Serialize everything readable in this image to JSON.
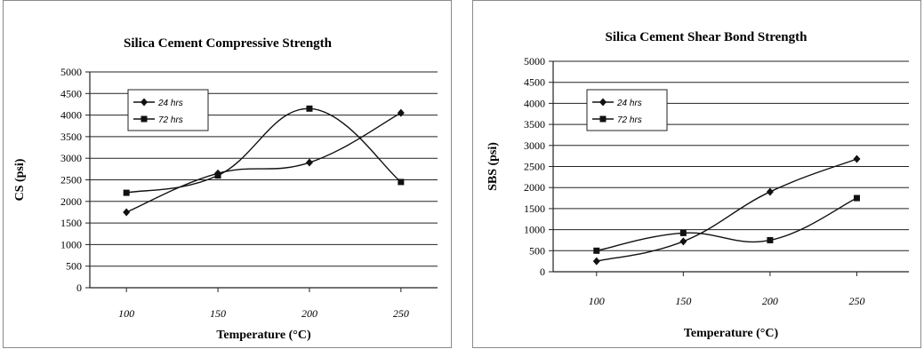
{
  "chart_data": [
    {
      "type": "line",
      "title": "Silica Cement Compressive Strength",
      "xlabel": "Temperature (°C)",
      "ylabel": "CS (psi)",
      "x": [
        100,
        150,
        200,
        250
      ],
      "xticks": [
        "100",
        "150",
        "200",
        "250"
      ],
      "xlim": [
        80,
        270
      ],
      "ylim": [
        0,
        5000
      ],
      "yticks": [
        "0",
        "500",
        "1000",
        "1500",
        "2000",
        "2500",
        "3000",
        "3500",
        "4000",
        "4500",
        "5000"
      ],
      "grid": true,
      "legend": "top-left",
      "series": [
        {
          "name": "24 hrs",
          "marker": "diamond",
          "values": [
            1750,
            2650,
            2900,
            4050
          ]
        },
        {
          "name": "72 hrs",
          "marker": "square",
          "values": [
            2200,
            2600,
            4150,
            2450
          ]
        }
      ]
    },
    {
      "type": "line",
      "title": "Silica Cement Shear Bond Strength",
      "xlabel": "Temperature (°C)",
      "ylabel": "SBS (psi)",
      "x": [
        100,
        150,
        200,
        250
      ],
      "xticks": [
        "100",
        "150",
        "200",
        "250"
      ],
      "xlim": [
        75,
        280
      ],
      "ylim": [
        0,
        5000
      ],
      "yticks": [
        "0",
        "500",
        "1000",
        "1500",
        "2000",
        "2500",
        "3000",
        "3500",
        "4000",
        "4500",
        "5000"
      ],
      "grid": true,
      "legend": "top-left",
      "series": [
        {
          "name": "24 hrs",
          "marker": "diamond",
          "values": [
            250,
            720,
            1900,
            2680
          ]
        },
        {
          "name": "72 hrs",
          "marker": "square",
          "values": [
            500,
            920,
            750,
            1750
          ]
        }
      ]
    }
  ]
}
